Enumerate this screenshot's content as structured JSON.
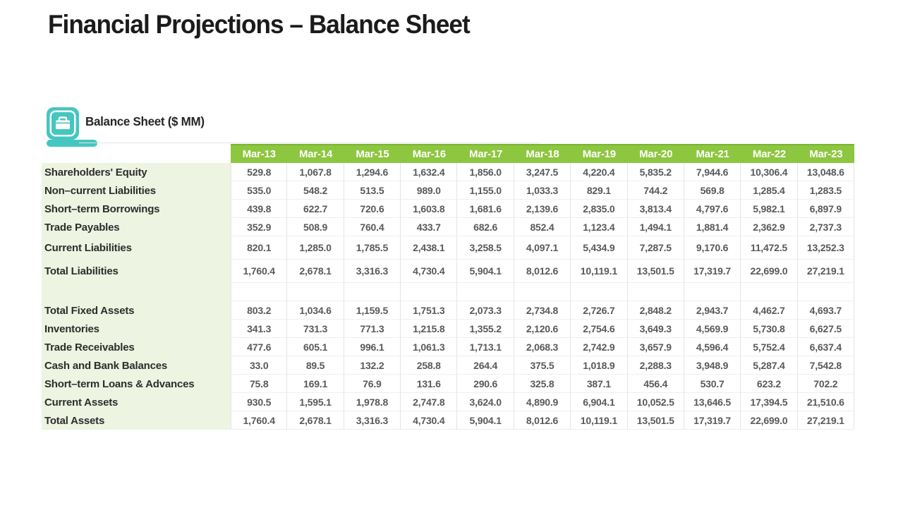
{
  "slide": {
    "title": "Financial Projections – Balance Sheet",
    "section_label": "Balance Sheet ($ MM)",
    "section_icon": "briefcase-icon"
  },
  "colors": {
    "header_bg": "#8DC63F",
    "header_border": "#7AB431",
    "label_bg": "#EDF4E1",
    "accent_teal": "#45C6C0",
    "number_text": "#58595B",
    "title_text": "#1B1B1B"
  },
  "chart_data": {
    "type": "table",
    "title": "Balance Sheet ($ MM)",
    "columns": [
      "Mar-13",
      "Mar-14",
      "Mar-15",
      "Mar-16",
      "Mar-17",
      "Mar-18",
      "Mar-19",
      "Mar-20",
      "Mar-21",
      "Mar-22",
      "Mar-23"
    ],
    "rows": [
      {
        "label": "Shareholders' Equity",
        "tall": false,
        "values": [
          "529.8",
          "1,067.8",
          "1,294.6",
          "1,632.4",
          "1,856.0",
          "3,247.5",
          "4,220.4",
          "5,835.2",
          "7,944.6",
          "10,306.4",
          "13,048.6"
        ]
      },
      {
        "label": "Non–current Liabilities",
        "tall": false,
        "values": [
          "535.0",
          "548.2",
          "513.5",
          "989.0",
          "1,155.0",
          "1,033.3",
          "829.1",
          "744.2",
          "569.8",
          "1,285.4",
          "1,283.5"
        ]
      },
      {
        "label": "Short–term Borrowings",
        "tall": false,
        "values": [
          "439.8",
          "622.7",
          "720.6",
          "1,603.8",
          "1,681.6",
          "2,139.6",
          "2,835.0",
          "3,813.4",
          "4,797.6",
          "5,982.1",
          "6,897.9"
        ]
      },
      {
        "label": "Trade Payables",
        "tall": false,
        "values": [
          "352.9",
          "508.9",
          "760.4",
          "433.7",
          "682.6",
          "852.4",
          "1,123.4",
          "1,494.1",
          "1,881.4",
          "2,362.9",
          "2,737.3"
        ]
      },
      {
        "label": "Current Liabilities",
        "tall": true,
        "values": [
          "820.1",
          "1,285.0",
          "1,785.5",
          "2,438.1",
          "3,258.5",
          "4,097.1",
          "5,434.9",
          "7,287.5",
          "9,170.6",
          "11,472.5",
          "13,252.3"
        ]
      },
      {
        "label": "Total Liabilities",
        "tall": true,
        "values": [
          "1,760.4",
          "2,678.1",
          "3,316.3",
          "4,730.4",
          "5,904.1",
          "8,012.6",
          "10,119.1",
          "13,501.5",
          "17,319.7",
          "22,699.0",
          "27,219.1"
        ]
      },
      {
        "label": "",
        "tall": false,
        "values": [
          "",
          "",
          "",
          "",
          "",
          "",
          "",
          "",
          "",
          "",
          ""
        ]
      },
      {
        "label": "Total Fixed Assets",
        "tall": false,
        "values": [
          "803.2",
          "1,034.6",
          "1,159.5",
          "1,751.3",
          "2,073.3",
          "2,734.8",
          "2,726.7",
          "2,848.2",
          "2,943.7",
          "4,462.7",
          "4,693.7"
        ]
      },
      {
        "label": "Inventories",
        "tall": false,
        "values": [
          "341.3",
          "731.3",
          "771.3",
          "1,215.8",
          "1,355.2",
          "2,120.6",
          "2,754.6",
          "3,649.3",
          "4,569.9",
          "5,730.8",
          "6,627.5"
        ]
      },
      {
        "label": "Trade Receivables",
        "tall": false,
        "values": [
          "477.6",
          "605.1",
          "996.1",
          "1,061.3",
          "1,713.1",
          "2,068.3",
          "2,742.9",
          "3,657.9",
          "4,596.4",
          "5,752.4",
          "6,637.4"
        ]
      },
      {
        "label": "Cash and Bank Balances",
        "tall": false,
        "values": [
          "33.0",
          "89.5",
          "132.2",
          "258.8",
          "264.4",
          "375.5",
          "1,018.9",
          "2,288.3",
          "3,948.9",
          "5,287.4",
          "7,542.8"
        ]
      },
      {
        "label": "Short–term Loans & Advances",
        "tall": false,
        "values": [
          "75.8",
          "169.1",
          "76.9",
          "131.6",
          "290.6",
          "325.8",
          "387.1",
          "456.4",
          "530.7",
          "623.2",
          "702.2"
        ]
      },
      {
        "label": "Current Assets",
        "tall": false,
        "values": [
          "930.5",
          "1,595.1",
          "1,978.8",
          "2,747.8",
          "3,624.0",
          "4,890.9",
          "6,904.1",
          "10,052.5",
          "13,646.5",
          "17,394.5",
          "21,510.6"
        ]
      },
      {
        "label": "Total Assets",
        "tall": false,
        "values": [
          "1,760.4",
          "2,678.1",
          "3,316.3",
          "4,730.4",
          "5,904.1",
          "8,012.6",
          "10,119.1",
          "13,501.5",
          "17,319.7",
          "22,699.0",
          "27,219.1"
        ]
      }
    ]
  }
}
